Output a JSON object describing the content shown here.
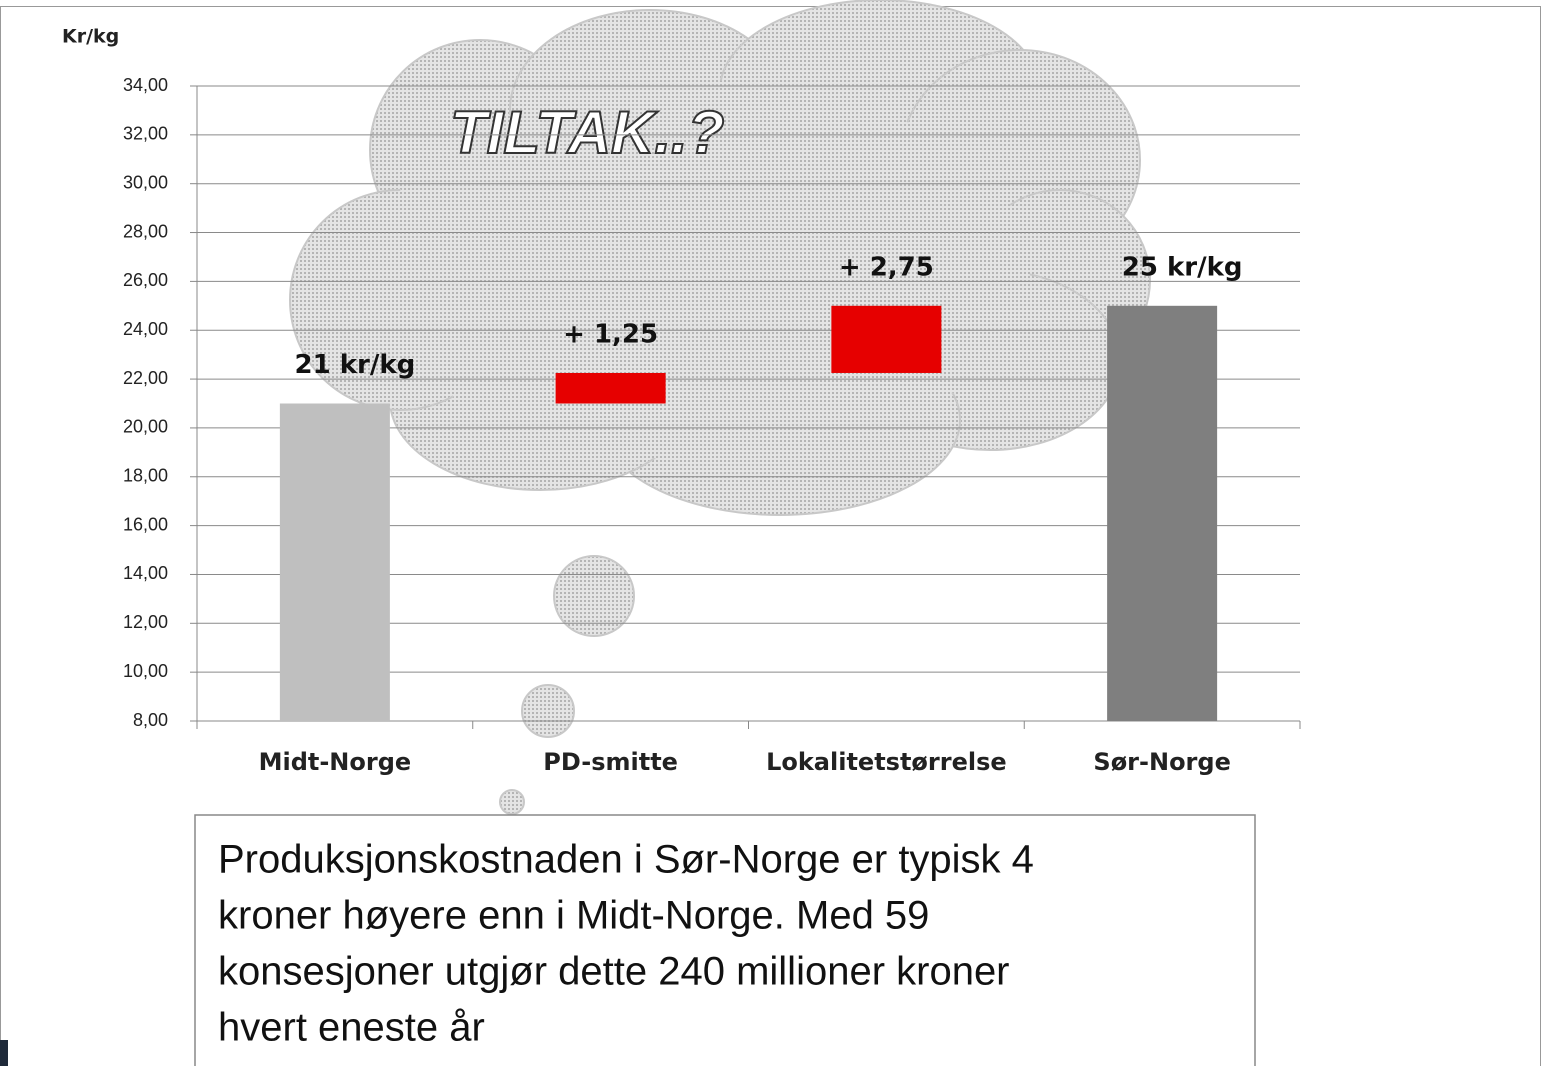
{
  "chart_data": {
    "type": "waterfall",
    "y_label": "Kr/kg",
    "categories": [
      "Midt-Norge",
      "PD-smitte",
      "Lokalitetstørrelse",
      "Sør-Norge"
    ],
    "values": [
      21,
      1.25,
      2.75,
      25
    ],
    "value_labels": [
      "21 kr/kg",
      "+ 1,25",
      "+ 2,75",
      "25 kr/kg"
    ],
    "colors": [
      "#bfbfbf",
      "#e60000",
      "#e60000",
      "#7f7f7f"
    ],
    "ylim": [
      8,
      34
    ],
    "yticks": [
      {
        "value": 8,
        "label": "8,00"
      },
      {
        "value": 10,
        "label": "10,00"
      },
      {
        "value": 12,
        "label": "12,00"
      },
      {
        "value": 14,
        "label": "14,00"
      },
      {
        "value": 16,
        "label": "16,00"
      },
      {
        "value": 18,
        "label": "18,00"
      },
      {
        "value": 20,
        "label": "20,00"
      },
      {
        "value": 22,
        "label": "22,00"
      },
      {
        "value": 24,
        "label": "24,00"
      },
      {
        "value": 26,
        "label": "26,00"
      },
      {
        "value": 28,
        "label": "28,00"
      },
      {
        "value": 30,
        "label": "30,00"
      },
      {
        "value": 32,
        "label": "32,00"
      },
      {
        "value": 34,
        "label": "34,00"
      }
    ],
    "grid": true,
    "annotation": "TILTAK..?",
    "note": [
      "Produksjonskostnaden i Sør-Norge er typisk 4",
      "kroner høyere enn i Midt-Norge. Med 59",
      "konsesjoner utgjør dette 240 millioner kroner",
      "hvert eneste år"
    ]
  }
}
